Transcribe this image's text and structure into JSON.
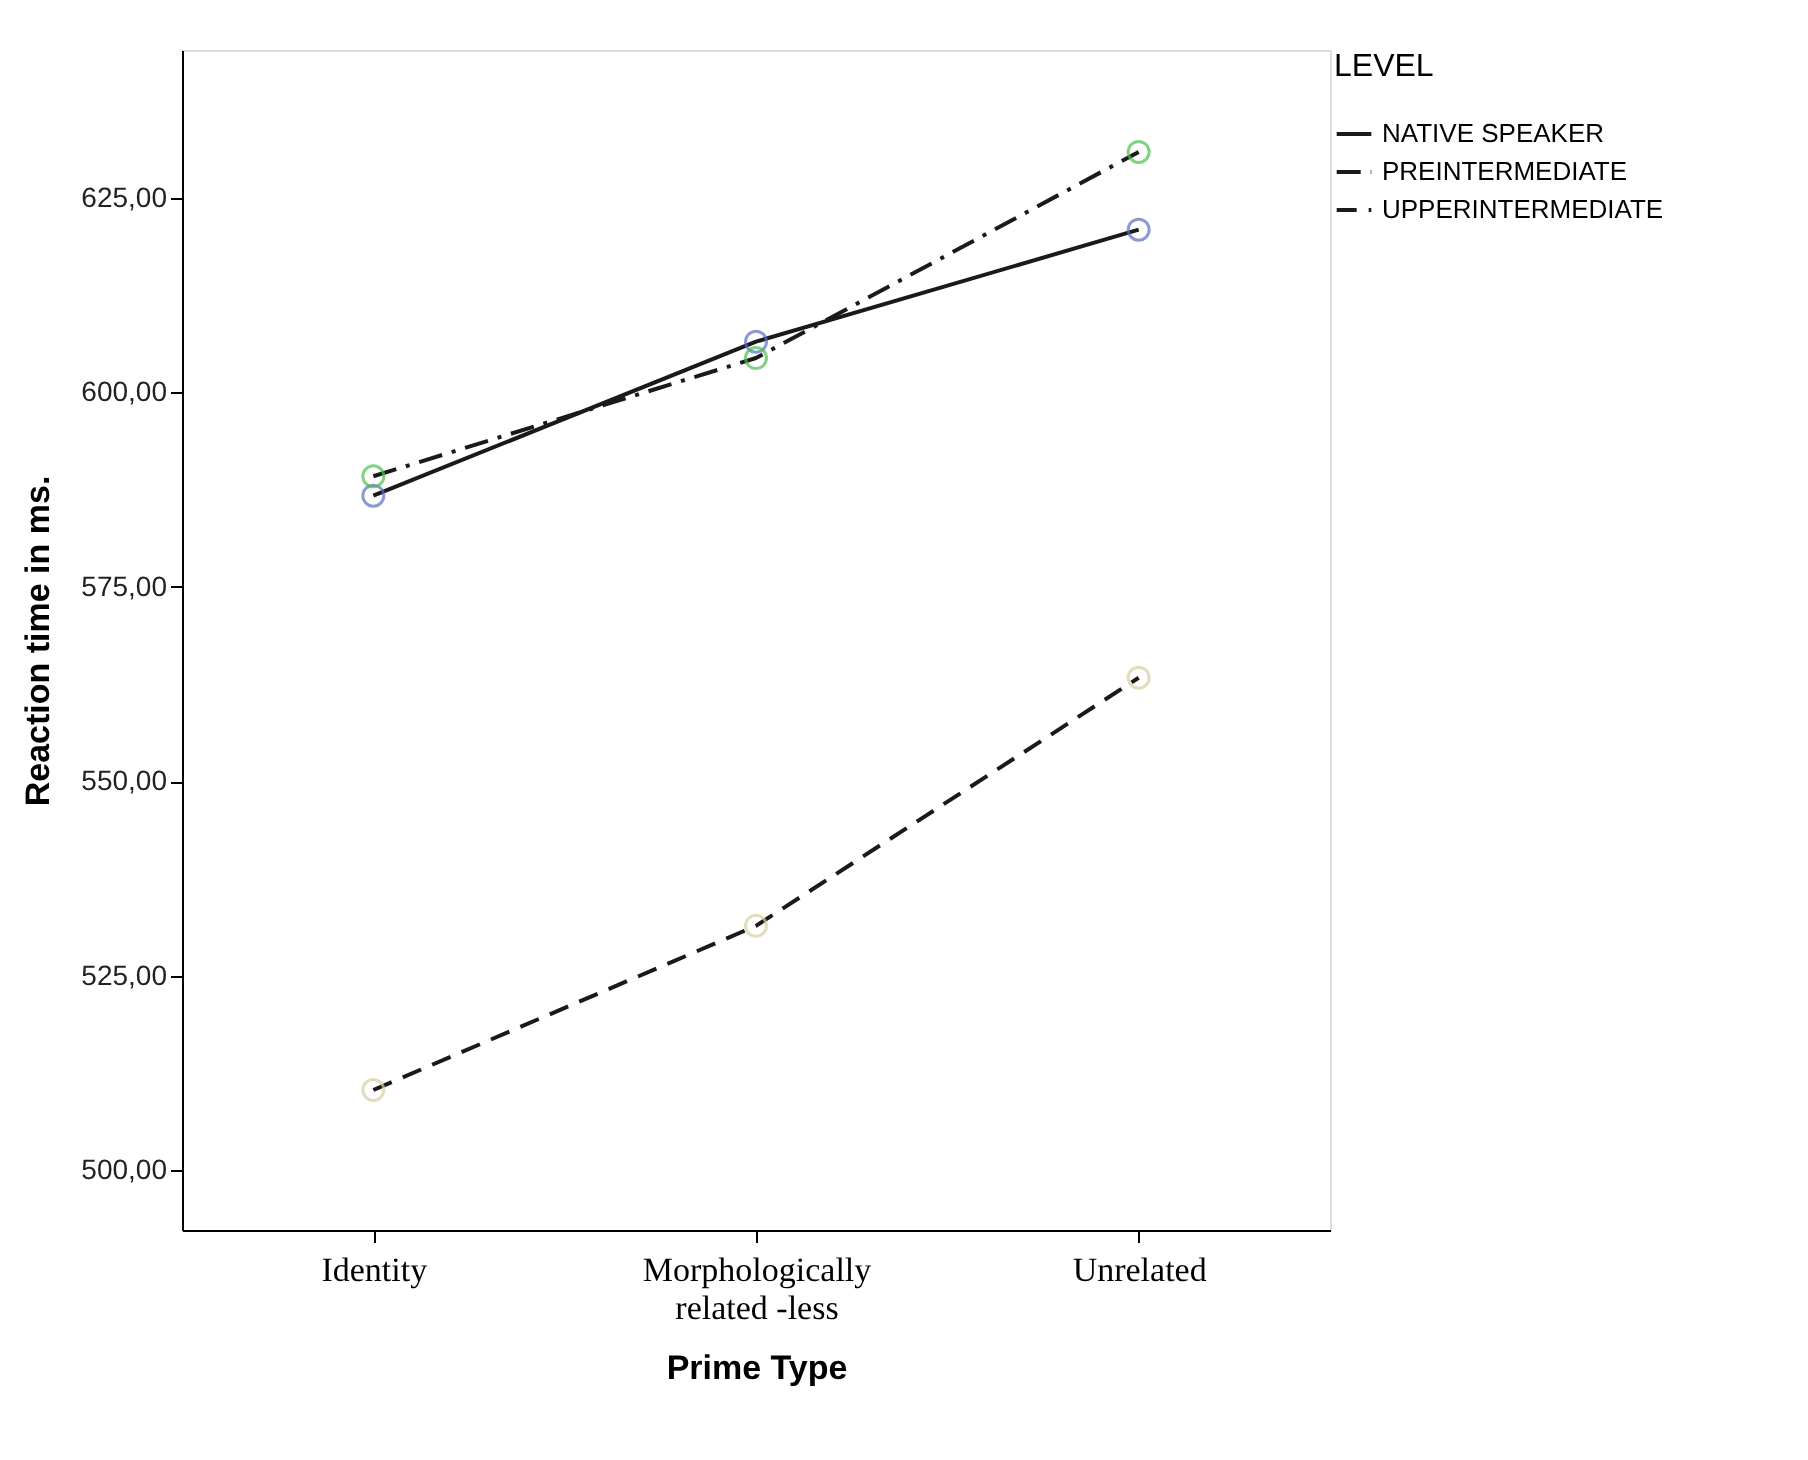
{
  "chart_data": {
    "type": "line",
    "xlabel": "Prime Type",
    "ylabel": "Reaction time in ms.",
    "legend_title": "LEVEL",
    "categories": [
      "Identity",
      "Morphologically related -less",
      "Unrelated"
    ],
    "series": [
      {
        "name": "NATIVE SPEAKER",
        "color": "#1a1a1a",
        "line_style": "solid",
        "colors": [
          "#5b6fc4",
          "#5b6fc4",
          "#5b6fc4"
        ],
        "values": [
          586.7,
          606.5,
          620.9
        ]
      },
      {
        "name": "PREINTERMEDIATE",
        "color": "#1a1a1a",
        "line_style": "dashdot",
        "colors": [
          "#4cbf4c",
          "#4cbf4c",
          "#4cbf4c"
        ],
        "values": [
          589.2,
          604.4,
          630.9
        ]
      },
      {
        "name": "UPPERINTERMEDIATE",
        "color": "#1a1a1a",
        "line_style": "dashed",
        "colors": [
          "#d6cfa0",
          "#d6cfa0",
          "#d6cfa0"
        ],
        "values": [
          510.3,
          531.4,
          563.3
        ]
      }
    ],
    "ylim": [
      492.3,
      644
    ],
    "yticks": [
      {
        "value": 500,
        "label": "500,00"
      },
      {
        "value": 525,
        "label": "525,00"
      },
      {
        "value": 550,
        "label": "550,00"
      },
      {
        "value": 575,
        "label": "575,00"
      },
      {
        "value": 600,
        "label": "600,00"
      },
      {
        "value": 625,
        "label": "625,00"
      }
    ],
    "marker": "circle",
    "grid": false,
    "legend": "top right"
  }
}
